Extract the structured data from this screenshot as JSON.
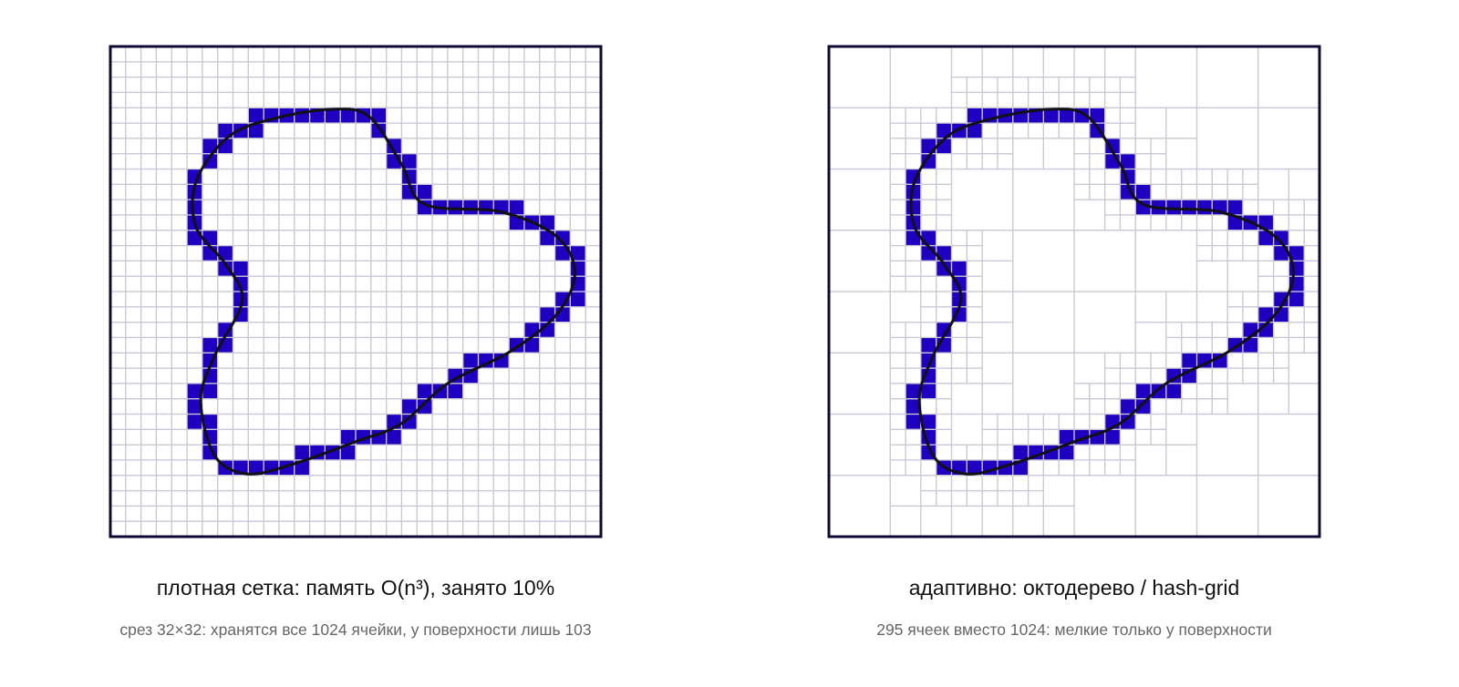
{
  "panels": [
    {
      "title": "плотная сетка: память O(n³), занято 10%",
      "subtitle": "срез 32×32: хранятся все 1024 ячейки, у поверхности лишь 103"
    },
    {
      "title": "адаптивно: октодерево / hash-grid",
      "subtitle": "295 ячеек вместо 1024: мелкие только у поверхности"
    }
  ]
}
